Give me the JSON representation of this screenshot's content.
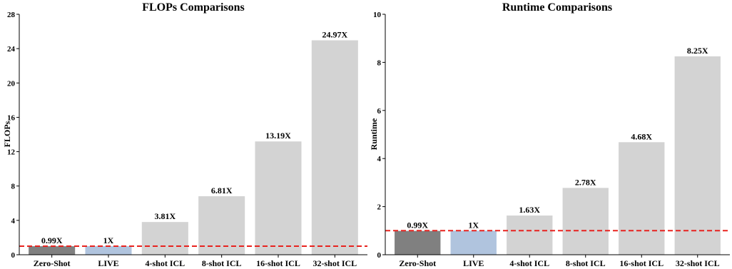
{
  "chart_data": [
    {
      "type": "bar",
      "title": "FLOPs Comparisons",
      "xlabel": "",
      "ylabel": "FLOPs",
      "categories": [
        "Zero-Shot",
        "LIVE",
        "4-shot ICL",
        "8-shot ICL",
        "16-shot ICL",
        "32-shot ICL"
      ],
      "values": [
        0.99,
        1.0,
        3.81,
        6.81,
        13.19,
        24.97
      ],
      "value_labels": [
        "0.99X",
        "1X",
        "3.81X",
        "6.81X",
        "13.19X",
        "24.97X"
      ],
      "colors": [
        "#808080",
        "#b0c4de",
        "#d3d3d3",
        "#d3d3d3",
        "#d3d3d3",
        "#d3d3d3"
      ],
      "ylim": [
        0,
        28
      ],
      "yticks": [
        0,
        4,
        8,
        12,
        16,
        20,
        24,
        28
      ],
      "reference_line": {
        "y": 1.0,
        "color": "#e8231f",
        "style": "dashed"
      },
      "grid": false
    },
    {
      "type": "bar",
      "title": "Runtime Comparisons",
      "xlabel": "",
      "ylabel": "Runtime",
      "categories": [
        "Zero-Shot",
        "LIVE",
        "4-shot ICL",
        "8-shot ICL",
        "16-shot ICL",
        "32-shot ICL"
      ],
      "values": [
        0.99,
        1.0,
        1.63,
        2.78,
        4.68,
        8.25
      ],
      "value_labels": [
        "0.99X",
        "1X",
        "1.63X",
        "2.78X",
        "4.68X",
        "8.25X"
      ],
      "colors": [
        "#808080",
        "#b0c4de",
        "#d3d3d3",
        "#d3d3d3",
        "#d3d3d3",
        "#d3d3d3"
      ],
      "ylim": [
        0,
        10
      ],
      "yticks": [
        0,
        2,
        4,
        6,
        8,
        10
      ],
      "reference_line": {
        "y": 1.0,
        "color": "#e8231f",
        "style": "dashed"
      },
      "grid": false
    }
  ]
}
